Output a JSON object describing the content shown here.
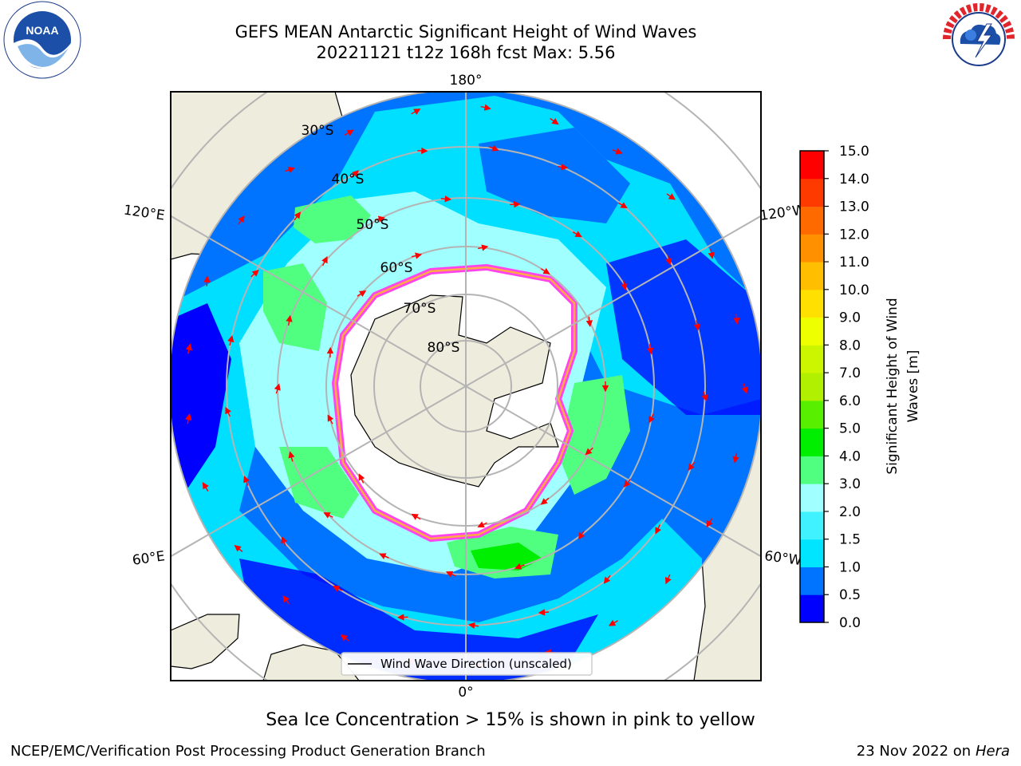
{
  "title": {
    "line1": "GEFS MEAN Antarctic Significant Height of Wind Waves",
    "line2": "20221121 t12z 168h fcst   Max: 5.56"
  },
  "map": {
    "projection": "south-polar-stereographic",
    "longitude_labels": [
      "180°",
      "120°E",
      "120°W",
      "60°E",
      "60°W",
      "0°"
    ],
    "latitude_labels": [
      "30°S",
      "40°S",
      "50°S",
      "60°S",
      "70°S",
      "80°S"
    ],
    "legend_label": "Wind Wave Direction (unscaled)"
  },
  "colorbar": {
    "label_line1": "Significant Height of Wind",
    "label_line2": "Waves [m]",
    "ticks": [
      "0.0",
      "0.5",
      "1.0",
      "1.5",
      "2.0",
      "3.0",
      "4.0",
      "5.0",
      "6.0",
      "7.0",
      "8.0",
      "9.0",
      "10.0",
      "11.0",
      "12.0",
      "13.0",
      "14.0",
      "15.0"
    ],
    "colors": [
      "#0000ff",
      "#0073ff",
      "#00e5ff",
      "#40f2ff",
      "#a0ffff",
      "#50ff80",
      "#00ee00",
      "#58f000",
      "#b0f000",
      "#ccf500",
      "#eeff00",
      "#ffe000",
      "#ffbf00",
      "#ff9000",
      "#ff6a00",
      "#ff3a00",
      "#ff0000"
    ]
  },
  "colors": {
    "land": "#eeecdc",
    "ice": "#ffffff",
    "ice_edge_pink": "#ff44ee",
    "ice_edge_orange": "#ffaa44",
    "arrow": "#ff0000",
    "grid": "#b4b4b4"
  },
  "footer": {
    "note": "Sea Ice Concentration > 15% is shown in pink to yellow",
    "credit_left": "NCEP/EMC/Verification Post Processing Product Generation Branch",
    "credit_date": "23 Nov 2022 on",
    "credit_machine": "Hera"
  },
  "logos": {
    "left": "noaa-logo",
    "right": "national-weather-service-logo"
  }
}
